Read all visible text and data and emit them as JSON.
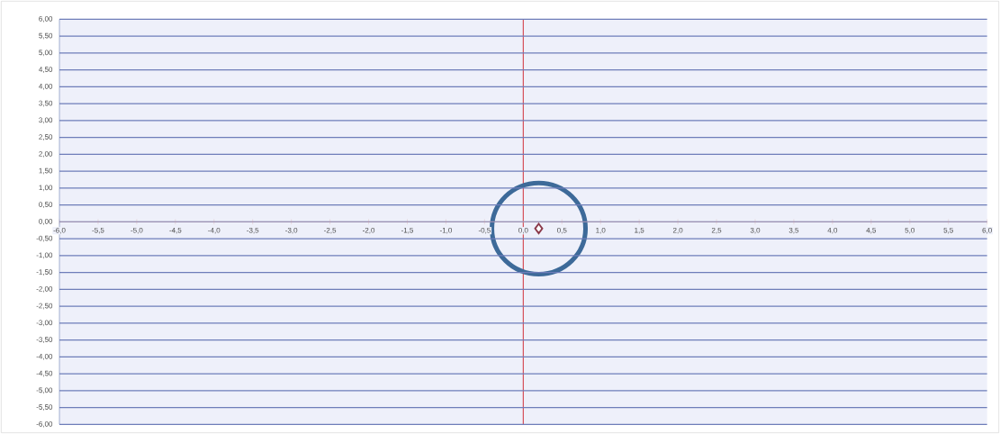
{
  "chart_data": {
    "type": "scatter",
    "x": [
      0.2
    ],
    "series": [
      {
        "color": "#8b3a4a",
        "values": [
          -0.2
        ]
      }
    ],
    "ref_lines": [
      {
        "axis": "x",
        "value": 0,
        "color": "#d23c46"
      }
    ],
    "marker": "diamond",
    "grid": "y",
    "xlim": [
      -6,
      6
    ],
    "ylim": [
      -6,
      6
    ],
    "xticks": [
      {
        "value": -6,
        "label": "-6,0"
      },
      {
        "value": -5.5,
        "label": "-5,5"
      },
      {
        "value": -5,
        "label": "-5,0"
      },
      {
        "value": -4.5,
        "label": "-4,5"
      },
      {
        "value": -4,
        "label": "-4,0"
      },
      {
        "value": -3.5,
        "label": "-3,5"
      },
      {
        "value": -3,
        "label": "-3,0"
      },
      {
        "value": -2.5,
        "label": "-2,5"
      },
      {
        "value": -2,
        "label": "-2,0"
      },
      {
        "value": -1.5,
        "label": "-1,5"
      },
      {
        "value": -1,
        "label": "-1,0"
      },
      {
        "value": -0.5,
        "label": "-0,5"
      },
      {
        "value": 0,
        "label": "0,0"
      },
      {
        "value": 0.5,
        "label": "0,5"
      },
      {
        "value": 1,
        "label": "1,0"
      },
      {
        "value": 1.5,
        "label": "1,5"
      },
      {
        "value": 2,
        "label": "2,0"
      },
      {
        "value": 2.5,
        "label": "2,5"
      },
      {
        "value": 3,
        "label": "3,0"
      },
      {
        "value": 3.5,
        "label": "3,5"
      },
      {
        "value": 4,
        "label": "4,0"
      },
      {
        "value": 4.5,
        "label": "4,5"
      },
      {
        "value": 5,
        "label": "5,0"
      },
      {
        "value": 5.5,
        "label": "5,5"
      },
      {
        "value": 6,
        "label": "6,0"
      }
    ],
    "yticks": [
      {
        "value": -6,
        "label": "-6,00"
      },
      {
        "value": -5.5,
        "label": "-5,50"
      },
      {
        "value": -5,
        "label": "-5,00"
      },
      {
        "value": -4.5,
        "label": "-4,50"
      },
      {
        "value": -4,
        "label": "-4,00"
      },
      {
        "value": -3.5,
        "label": "-3,50"
      },
      {
        "value": -3,
        "label": "-3,00"
      },
      {
        "value": -2.5,
        "label": "-2,50"
      },
      {
        "value": -2,
        "label": "-2,00"
      },
      {
        "value": -1.5,
        "label": "-1,50"
      },
      {
        "value": -1,
        "label": "-1,00"
      },
      {
        "value": -0.5,
        "label": "-0,50"
      },
      {
        "value": 0,
        "label": "0,00"
      },
      {
        "value": 0.5,
        "label": "0,50"
      },
      {
        "value": 1,
        "label": "1,00"
      },
      {
        "value": 1.5,
        "label": "1,50"
      },
      {
        "value": 2,
        "label": "2,00"
      },
      {
        "value": 2.5,
        "label": "2,50"
      },
      {
        "value": 3,
        "label": "3,00"
      },
      {
        "value": 3.5,
        "label": "3,50"
      },
      {
        "value": 4,
        "label": "4,00"
      },
      {
        "value": 4.5,
        "label": "4,50"
      },
      {
        "value": 5,
        "label": "5,00"
      },
      {
        "value": 5.5,
        "label": "5,50"
      },
      {
        "value": 6,
        "label": "6,00"
      }
    ]
  }
}
